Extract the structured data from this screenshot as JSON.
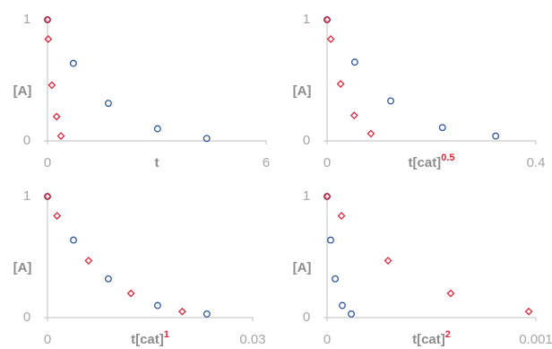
{
  "chart_data": [
    {
      "type": "scatter",
      "xlabel": "t",
      "ylabel": "[A]",
      "xlim": [
        0,
        6
      ],
      "ylim": [
        0,
        1
      ],
      "xticks": [
        0,
        6
      ],
      "yticks": [
        0,
        1
      ],
      "series": [
        {
          "color": "#2e5597",
          "marker": "circle",
          "x": [
            0,
            0.71,
            1.67,
            3.02,
            4.37
          ],
          "values": [
            1,
            0.64,
            0.31,
            0.1,
            0.02
          ]
        },
        {
          "color": "#e0263c",
          "marker": "diamond",
          "x": [
            0,
            0.02,
            0.12,
            0.25,
            0.37
          ],
          "values": [
            1,
            0.84,
            0.46,
            0.2,
            0.04
          ]
        }
      ]
    },
    {
      "type": "scatter",
      "xlabel": "t[cat]",
      "xlabel_sup": "0.5",
      "ylabel": "[A]",
      "xlim": [
        0,
        0.4
      ],
      "ylim": [
        0,
        1
      ],
      "xticks": [
        0,
        0.4
      ],
      "yticks": [
        0,
        1
      ],
      "series": [
        {
          "color": "#2e5597",
          "marker": "circle",
          "x": [
            0,
            0.053,
            0.122,
            0.221,
            0.323
          ],
          "values": [
            1,
            0.65,
            0.33,
            0.11,
            0.04
          ]
        },
        {
          "color": "#e0263c",
          "marker": "diamond",
          "x": [
            0,
            0.007,
            0.026,
            0.052,
            0.084
          ],
          "values": [
            1,
            0.84,
            0.47,
            0.21,
            0.06
          ]
        }
      ]
    },
    {
      "type": "scatter",
      "xlabel": "t[cat]",
      "xlabel_sup": "1",
      "ylabel": "[A]",
      "xlim": [
        0,
        0.03
      ],
      "ylim": [
        0,
        1
      ],
      "xticks": [
        0,
        0.03
      ],
      "yticks": [
        0,
        1
      ],
      "series": [
        {
          "color": "#2e5597",
          "marker": "circle",
          "x": [
            0,
            0.0038,
            0.0089,
            0.0161,
            0.0233
          ],
          "values": [
            1,
            0.64,
            0.32,
            0.1,
            0.03
          ]
        },
        {
          "color": "#e0263c",
          "marker": "diamond",
          "x": [
            0,
            0.0014,
            0.006,
            0.0122,
            0.0197
          ],
          "values": [
            1,
            0.84,
            0.47,
            0.2,
            0.05
          ]
        }
      ]
    },
    {
      "type": "scatter",
      "xlabel": "t[cat]",
      "xlabel_sup": "2",
      "ylabel": "[A]",
      "xlim": [
        0,
        0.001
      ],
      "ylim": [
        0,
        1
      ],
      "xticks": [
        0,
        0.001
      ],
      "yticks": [
        0,
        1
      ],
      "series": [
        {
          "color": "#2e5597",
          "marker": "circle",
          "x": [
            0,
            1.7e-05,
            3.9e-05,
            7.3e-05,
            0.000116
          ],
          "values": [
            1,
            0.64,
            0.32,
            0.1,
            0.03
          ]
        },
        {
          "color": "#e0263c",
          "marker": "diamond",
          "x": [
            0,
            6.9e-05,
            0.000292,
            0.000592,
            0.000966
          ],
          "values": [
            1,
            0.84,
            0.47,
            0.2,
            0.05
          ]
        }
      ]
    }
  ]
}
